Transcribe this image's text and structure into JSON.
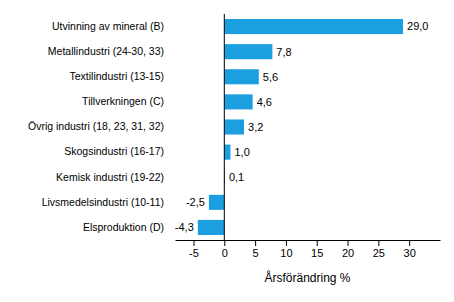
{
  "chart_data": {
    "type": "bar",
    "orientation": "horizontal",
    "categories": [
      "Utvinning av mineral (B)",
      "Metallindustri (24-30, 33)",
      "Textilindustri (13-15)",
      "Tillverkningen (C)",
      "Övrig industri (18, 23, 31, 32)",
      "Skogsindustri (16-17)",
      "Kemisk industri (19-22)",
      "Livsmedelsindustri (10-11)",
      "Elsproduktion (D)"
    ],
    "values": [
      29.0,
      7.8,
      5.6,
      4.6,
      3.2,
      1.0,
      0.1,
      -2.5,
      -4.3
    ],
    "value_labels": [
      "29,0",
      "7,8",
      "5,6",
      "4,6",
      "3,2",
      "1,0",
      "0,1",
      "-2,5",
      "-4,3"
    ],
    "data_labels": true,
    "color": "#1b9fe0",
    "x_label": "Årsförändring %",
    "xlim": [
      -8,
      35
    ],
    "xticks": [
      -5,
      0,
      5,
      10,
      15,
      20,
      25,
      30
    ],
    "grid": false
  }
}
